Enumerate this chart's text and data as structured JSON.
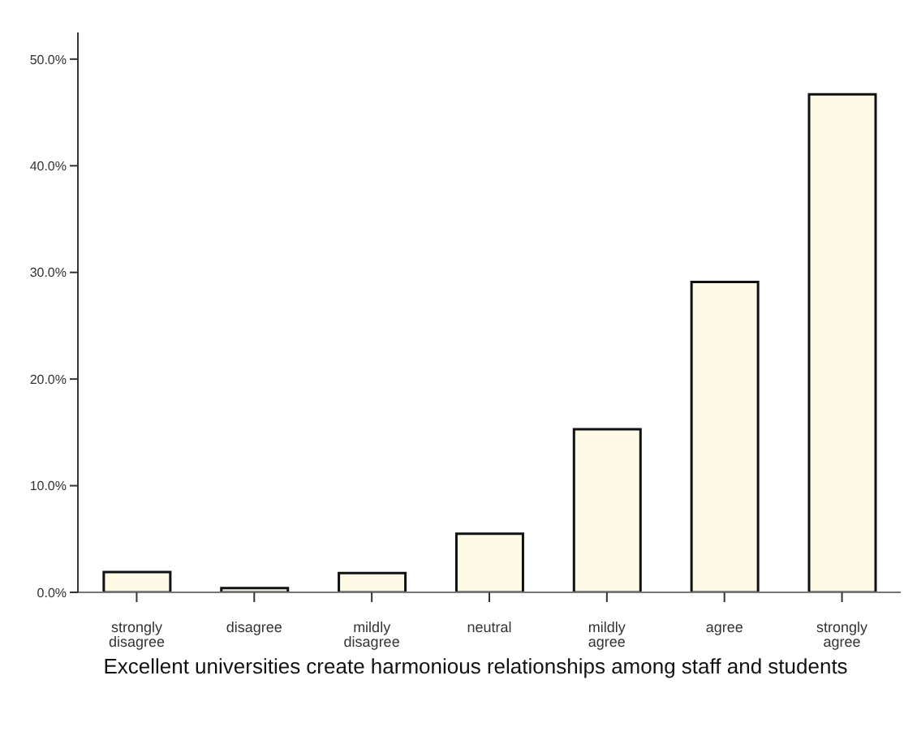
{
  "chart_data": {
    "type": "bar",
    "xlabel": "Excellent universities create harmonious relationships among staff and students",
    "categories": [
      "strongly disagree",
      "disagree",
      "mildly disagree",
      "neutral",
      "mildly agree",
      "agree",
      "strongly agree"
    ],
    "values": [
      1.9,
      0.4,
      1.8,
      5.5,
      15.3,
      29.1,
      46.7
    ],
    "color": "#fdfbe6",
    "ylim": [
      0,
      52.5
    ],
    "yticks": [
      {
        "value": 0,
        "label": "0.0%"
      },
      {
        "value": 10,
        "label": "10.0%"
      },
      {
        "value": 20,
        "label": "20.0%"
      },
      {
        "value": 30,
        "label": "30.0%"
      },
      {
        "value": 40,
        "label": "40.0%"
      },
      {
        "value": 50,
        "label": "50.0%"
      }
    ],
    "grid": false
  }
}
